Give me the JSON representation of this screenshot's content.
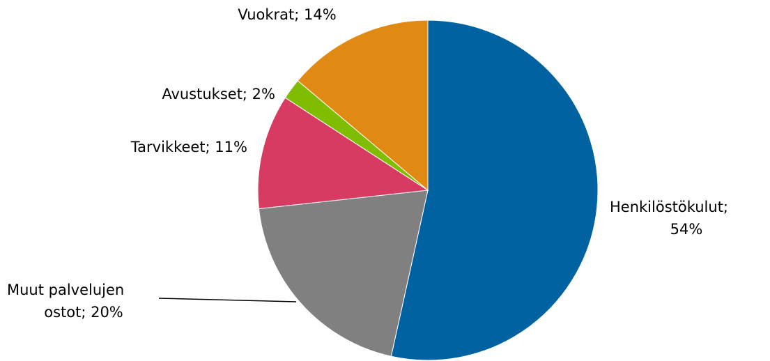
{
  "chart_data": {
    "type": "pie",
    "labels": [
      "Henkilöstökulut; 54%",
      "Muut palvelujen ostot; 20%",
      "Tarvikkeet; 11%",
      "Avustukset; 2%",
      "Vuokrat; 14%"
    ],
    "values": [
      54,
      20,
      11,
      2,
      14
    ],
    "colors": [
      "#0062a1",
      "#808080",
      "#d83b61",
      "#80bd00",
      "#e08a13"
    ]
  }
}
